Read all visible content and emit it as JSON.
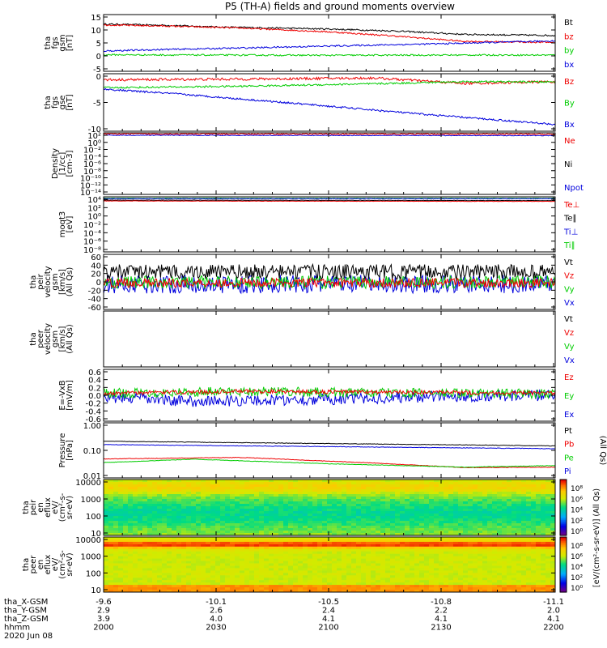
{
  "chart_data": {
    "type": "line",
    "title": "P5 (TH-A) fields and ground moments overview",
    "x_tick_labels": [
      "2000",
      "2030",
      "2100",
      "2130",
      "2200"
    ],
    "x_minor_ticks": 4,
    "footer_rows": [
      {
        "label": "tha_X-GSM",
        "values": [
          "-9.6",
          "-10.1",
          "-10.5",
          "-10.8",
          "-11.1"
        ]
      },
      {
        "label": "tha_Y-GSM",
        "values": [
          "2.9",
          "2.6",
          "2.4",
          "2.2",
          "2.0"
        ]
      },
      {
        "label": "tha_Z-GSM",
        "values": [
          "3.9",
          "4.0",
          "4.1",
          "4.1",
          "4.1"
        ]
      },
      {
        "label": "hhmm",
        "values": [
          "2000",
          "2030",
          "2100",
          "2130",
          "2200"
        ]
      }
    ],
    "date_label": "2020 Jun 08",
    "panels": [
      {
        "name": "fgs-gsm",
        "ylabel": [
          "tha",
          "fgs",
          "gsm",
          "[nT]"
        ],
        "yticks": [
          "15",
          "10",
          "5",
          "0",
          "-5"
        ],
        "ylim": [
          -6,
          16
        ],
        "legend": [
          {
            "name": "Bt",
            "color": "#000000"
          },
          {
            "name": "bz",
            "color": "#ee0000"
          },
          {
            "name": "by",
            "color": "#00cc00"
          },
          {
            "name": "bx",
            "color": "#0000dd"
          }
        ],
        "series": [
          {
            "name": "Bt",
            "color": "#000000",
            "noise": 0.3,
            "x": [
              0,
              0.15,
              0.25,
              0.5,
              0.65,
              0.8,
              1
            ],
            "y": [
              12.3,
              11.8,
              11.2,
              10.4,
              9.6,
              8.3,
              7.9
            ]
          },
          {
            "name": "bz",
            "color": "#ee0000",
            "noise": 0.3,
            "x": [
              0,
              0.15,
              0.3,
              0.5,
              0.65,
              0.8,
              1
            ],
            "y": [
              12,
              11.5,
              10.8,
              9.3,
              7.6,
              5.6,
              5.2
            ]
          },
          {
            "name": "by",
            "color": "#00cc00",
            "noise": 0.3,
            "x": [
              0,
              0.2,
              0.5,
              0.8,
              1
            ],
            "y": [
              0.4,
              0.3,
              0.2,
              0.3,
              0.3
            ]
          },
          {
            "name": "bx",
            "color": "#0000dd",
            "noise": 0.3,
            "x": [
              0,
              0.15,
              0.3,
              0.5,
              0.75,
              1
            ],
            "y": [
              1.9,
              2.5,
              3,
              3.8,
              4.7,
              5.8
            ]
          }
        ]
      },
      {
        "name": "fgs-gse",
        "ylabel": [
          "tha",
          "fgs",
          "gse",
          "[nT]"
        ],
        "yticks": [
          "0",
          "-5",
          "-10"
        ],
        "ylim": [
          -12,
          4
        ],
        "legend": [
          {
            "name": "Bz",
            "color": "#ee0000"
          },
          {
            "name": "By",
            "color": "#00cc00"
          },
          {
            "name": "Bx",
            "color": "#0000dd"
          }
        ],
        "series": [
          {
            "name": "Bz",
            "color": "#ee0000",
            "noise": 0.35,
            "x": [
              0,
              0.3,
              0.6,
              0.8,
              1
            ],
            "y": [
              2.3,
              2.5,
              2.8,
              1.3,
              1.8
            ]
          },
          {
            "name": "By",
            "color": "#00cc00",
            "noise": 0.25,
            "x": [
              0,
              0.3,
              0.6,
              0.8,
              1
            ],
            "y": [
              0.1,
              0.5,
              1.2,
              1.8,
              1.7
            ]
          },
          {
            "name": "Bx",
            "color": "#0000dd",
            "noise": 0.25,
            "x": [
              0,
              0.15,
              0.4,
              0.7,
              1
            ],
            "y": [
              -0.3,
              -1.5,
              -4,
              -7.2,
              -10.1
            ]
          }
        ]
      },
      {
        "name": "density",
        "ylabel": [
          "Density",
          "[1/cc]",
          "[cm-3]"
        ],
        "yticks": [
          "10²",
          "10⁰",
          "10⁻²",
          "10⁻⁴",
          "10⁻⁶",
          "10⁻⁸",
          "10⁻¹⁰",
          "10⁻¹²",
          "10⁻¹⁴"
        ],
        "ylim": [
          -15,
          3
        ],
        "legend": [
          {
            "name": "Ne",
            "color": "#ee0000"
          },
          {
            "name": "Ni",
            "color": "#000000"
          },
          {
            "name": "Npot",
            "color": "#0000dd"
          }
        ],
        "series": [
          {
            "name": "Ne",
            "color": "#ee0000",
            "noise": 0.2,
            "x": [
              0,
              1
            ],
            "y": [
              2.7,
              2.6
            ]
          },
          {
            "name": "Npot",
            "color": "#0000dd",
            "noise": 0.1,
            "x": [
              0,
              1
            ],
            "y": [
              2.3,
              2.2
            ]
          }
        ]
      },
      {
        "name": "temperature",
        "ylabel": [
          "moqt3",
          "[eV]"
        ],
        "yticks": [
          "10⁴",
          "10²",
          "10⁰",
          "10⁻²",
          "10⁻⁴",
          "10⁻⁶",
          "10⁻⁸"
        ],
        "ylim": [
          -9,
          4.3
        ],
        "legend": [
          {
            "name": "Te⊥",
            "color": "#ee0000"
          },
          {
            "name": "Te∥",
            "color": "#000000"
          },
          {
            "name": "Ti⊥",
            "color": "#0000dd"
          },
          {
            "name": "Ti∥",
            "color": "#00cc00"
          }
        ],
        "series": [
          {
            "name": "Ti∥",
            "color": "#00cc00",
            "noise": 0.05,
            "x": [
              0,
              1
            ],
            "y": [
              3.95,
              3.95
            ]
          },
          {
            "name": "Ti⊥",
            "color": "#0000dd",
            "noise": 0.05,
            "x": [
              0,
              1
            ],
            "y": [
              3.85,
              3.85
            ]
          },
          {
            "name": "Te∥",
            "color": "#000000",
            "noise": 0.05,
            "x": [
              0,
              1
            ],
            "y": [
              3.5,
              3.4
            ]
          },
          {
            "name": "Te⊥",
            "color": "#ee0000",
            "noise": 0.05,
            "x": [
              0,
              1
            ],
            "y": [
              3.3,
              3.2
            ]
          }
        ]
      },
      {
        "name": "peir-velocity",
        "ylabel": [
          "tha",
          "peir",
          "velocity",
          "gsm",
          "[km/s]",
          "(All Qs)"
        ],
        "yticks": [
          "60",
          "40",
          "20",
          "0",
          "-20",
          "-40",
          "-60"
        ],
        "ylim": [
          -60,
          60
        ],
        "legend": [
          {
            "name": "Vt",
            "color": "#000000"
          },
          {
            "name": "Vz",
            "color": "#ee0000"
          },
          {
            "name": "Vy",
            "color": "#00cc00"
          },
          {
            "name": "Vx",
            "color": "#0000dd"
          }
        ],
        "series": [
          {
            "name": "Vx",
            "color": "#0000dd",
            "noise": 20,
            "x": [
              0,
              1
            ],
            "y": [
              -5,
              -5
            ]
          },
          {
            "name": "Vy",
            "color": "#00cc00",
            "noise": 14,
            "x": [
              0,
              1
            ],
            "y": [
              -1,
              0
            ]
          },
          {
            "name": "Vz",
            "color": "#ee0000",
            "noise": 10,
            "x": [
              0,
              1
            ],
            "y": [
              -2,
              -2
            ]
          },
          {
            "name": "Vt",
            "color": "#000000",
            "noise": 16,
            "x": [
              0,
              1
            ],
            "y": [
              22,
              22
            ]
          }
        ]
      },
      {
        "name": "peer-velocity",
        "ylabel": [
          "tha",
          "peer",
          "velocity",
          "gsm",
          "[km/s]",
          "(All Qs)"
        ],
        "yticks": [],
        "ylim": [
          0,
          1
        ],
        "legend": [
          {
            "name": "Vt",
            "color": "#000000"
          },
          {
            "name": "Vz",
            "color": "#ee0000"
          },
          {
            "name": "Vy",
            "color": "#00cc00"
          },
          {
            "name": "Vx",
            "color": "#0000dd"
          }
        ],
        "series": []
      },
      {
        "name": "efield",
        "ylabel": [
          "E=-VxB",
          "[mV/m]"
        ],
        "yticks": [
          "0.6",
          "0.4",
          "0.2",
          "0.0",
          "-0.2",
          "-0.4",
          "-0.6"
        ],
        "ylim": [
          -0.65,
          0.65
        ],
        "legend": [
          {
            "name": "Ez",
            "color": "#ee0000"
          },
          {
            "name": "Ey",
            "color": "#00cc00"
          },
          {
            "name": "Ex",
            "color": "#0000dd"
          }
        ],
        "series": [
          {
            "name": "Ex",
            "color": "#0000dd",
            "noise": 0.14,
            "x": [
              0,
              0.2,
              0.5,
              0.8,
              1
            ],
            "y": [
              -0.05,
              -0.15,
              -0.1,
              -0.02,
              0
            ]
          },
          {
            "name": "Ey",
            "color": "#00cc00",
            "noise": 0.12,
            "x": [
              0,
              0.3,
              0.6,
              1
            ],
            "y": [
              0.05,
              0.1,
              0.06,
              0.04
            ]
          },
          {
            "name": "Ez",
            "color": "#ee0000",
            "noise": 0.05,
            "x": [
              0,
              0.3,
              0.6,
              1
            ],
            "y": [
              0.05,
              0.1,
              0.08,
              0.05
            ]
          }
        ]
      },
      {
        "name": "pressure",
        "ylabel": [
          "Pressure",
          "[nPa]"
        ],
        "yticks": [
          "1.00",
          "0.10",
          "0.01"
        ],
        "ylim": [
          -2.1,
          0.05
        ],
        "legend": [
          {
            "name": "Pt",
            "color": "#000000"
          },
          {
            "name": "Pb",
            "color": "#ee0000"
          },
          {
            "name": "Pe",
            "color": "#00cc00"
          },
          {
            "name": "Pi",
            "color": "#0000dd"
          }
        ],
        "side_label": "(All Qs)",
        "series": [
          {
            "name": "Pt",
            "color": "#000000",
            "noise": 0.01,
            "x": [
              0,
              1
            ],
            "y": [
              -0.67,
              -0.85
            ]
          },
          {
            "name": "Pi",
            "color": "#0000dd",
            "noise": 0.01,
            "x": [
              0,
              1
            ],
            "y": [
              -0.8,
              -0.96
            ]
          },
          {
            "name": "Pb",
            "color": "#ee0000",
            "noise": 0.01,
            "x": [
              0,
              0.3,
              0.6,
              0.8,
              1
            ],
            "y": [
              -1.36,
              -1.3,
              -1.52,
              -1.7,
              -1.68
            ]
          },
          {
            "name": "Pe",
            "color": "#00cc00",
            "noise": 0.01,
            "x": [
              0,
              0.2,
              0.5,
              0.8,
              1
            ],
            "y": [
              -1.5,
              -1.37,
              -1.55,
              -1.68,
              -1.62
            ]
          }
        ]
      },
      {
        "name": "peir-eflux",
        "type": "heatmap",
        "ylabel": [
          "tha",
          "peir",
          "en",
          "eflux",
          "eV/",
          "(cm²-s-",
          "sr-eV)"
        ],
        "yticks": [
          "10000",
          "1000",
          "100",
          "10"
        ],
        "ylim": [
          0.8,
          4.3
        ]
      },
      {
        "name": "peer-eflux",
        "type": "heatmap",
        "ylabel": [
          "tha",
          "peer",
          "en",
          "eflux",
          "eV/",
          "(cm²-s-",
          "sr-eV)"
        ],
        "yticks": [
          "10000",
          "1000",
          "100",
          "10"
        ],
        "ylim": [
          0.8,
          4.3
        ]
      }
    ],
    "colorbars": [
      {
        "ticks": [
          "10⁸",
          "10⁶",
          "10⁴",
          "10²",
          "10⁰"
        ],
        "label": "[eV/(cm²-s-sr-eV)] (All Qs)"
      },
      {
        "ticks": [
          "10⁸",
          "10⁶",
          "10⁴",
          "10²",
          "10⁰"
        ],
        "label": "[eV/(cm²-s-sr-eV)] (All Qs)"
      }
    ]
  }
}
